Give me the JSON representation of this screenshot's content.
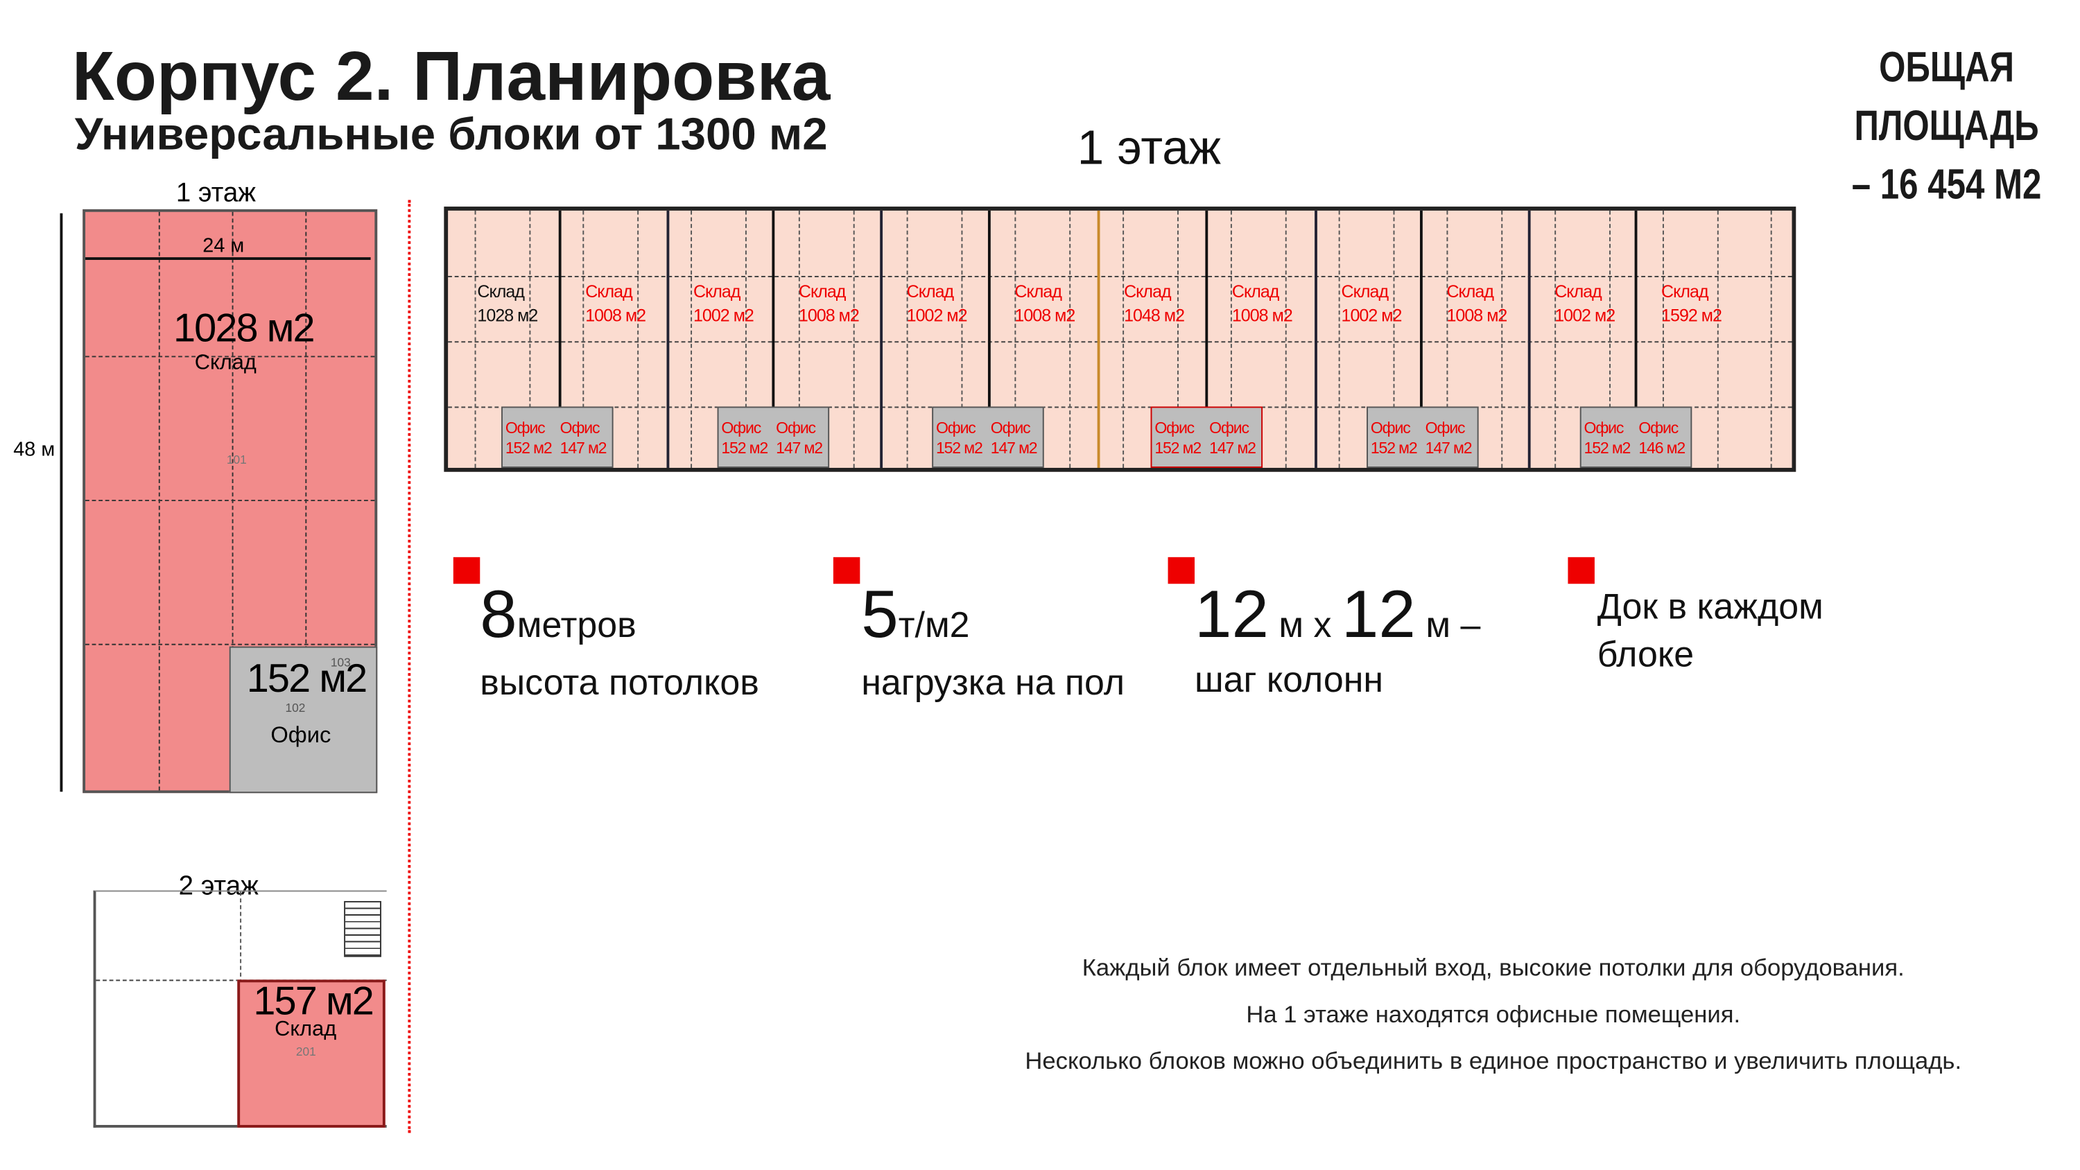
{
  "header": {
    "title": "Корпус 2. Планировка",
    "subtitle": "Универсальные блоки от 1300 м2",
    "total_line1": "ОБЩАЯ ПЛОЩАДЬ",
    "total_line2": "– 16 454  М2"
  },
  "main_plan": {
    "floor_label": "1 этаж",
    "blocks": [
      {
        "name": "Склад",
        "area": "1028 м2",
        "highlight": false
      },
      {
        "name": "Склад",
        "area": "1008 м2"
      },
      {
        "name": "Склад",
        "area": "1002 м2"
      },
      {
        "name": "Склад",
        "area": "1008 м2"
      },
      {
        "name": "Склад",
        "area": "1002 м2"
      },
      {
        "name": "Склад",
        "area": "1008 м2"
      },
      {
        "name": "Склад",
        "area": "1048 м2"
      },
      {
        "name": "Склад",
        "area": "1008 м2"
      },
      {
        "name": "Склад",
        "area": "1002 м2"
      },
      {
        "name": "Склад",
        "area": "1008 м2"
      },
      {
        "name": "Склад",
        "area": "1002 м2"
      },
      {
        "name": "Склад",
        "area": "1592 м2"
      }
    ],
    "offices": [
      {
        "a": {
          "name": "Офис",
          "area": "152 м2"
        },
        "b": {
          "name": "Офис",
          "area": "147 м2"
        }
      },
      {
        "a": {
          "name": "Офис",
          "area": "152 м2"
        },
        "b": {
          "name": "Офис",
          "area": "147 м2"
        }
      },
      {
        "a": {
          "name": "Офис",
          "area": "152 м2"
        },
        "b": {
          "name": "Офис",
          "area": "147 м2"
        }
      },
      {
        "a": {
          "name": "Офис",
          "area": "152 м2"
        },
        "b": {
          "name": "Офис",
          "area": "147 м2"
        }
      },
      {
        "a": {
          "name": "Офис",
          "area": "152 м2"
        },
        "b": {
          "name": "Офис",
          "area": "147 м2"
        }
      },
      {
        "a": {
          "name": "Офис",
          "area": "152 м2"
        },
        "b": {
          "name": "Офис",
          "area": "146 м2"
        }
      }
    ]
  },
  "block_plan_1": {
    "floor_label": "1 этаж",
    "width": "24 м",
    "height": "48 м",
    "warehouse_area": "1028 м2",
    "warehouse_name": "Склад",
    "room_101": "101",
    "office_area": "152 м2",
    "office_name": "Офис",
    "room_102": "102",
    "room_103": "103"
  },
  "block_plan_2": {
    "floor_label": "2 этаж",
    "area": "157 м2",
    "name": "Склад",
    "room": "201"
  },
  "features": [
    {
      "big": "8",
      "unit": "метров",
      "text": "высота потолков"
    },
    {
      "big": "5",
      "unit": "т/м2",
      "text": "нагрузка на пол"
    },
    {
      "big1": "12",
      "unit1": " м x ",
      "big2": "12",
      "unit2": " м –",
      "text": "шаг колонн"
    },
    {
      "line1": "Док в каждом",
      "line2": "блоке"
    }
  ],
  "notes": [
    "Каждый блок имеет отдельный вход, высокие потолки для оборудования.",
    "На 1 этаже находятся офисные помещения.",
    "Несколько блоков можно объединить в единое пространство и увеличить площадь."
  ],
  "colors": {
    "accent": "#e00000",
    "warehouse_fill": "#fbdcd0",
    "highlight_fill": "#f28b8b",
    "office_fill": "#bdbdbd"
  }
}
